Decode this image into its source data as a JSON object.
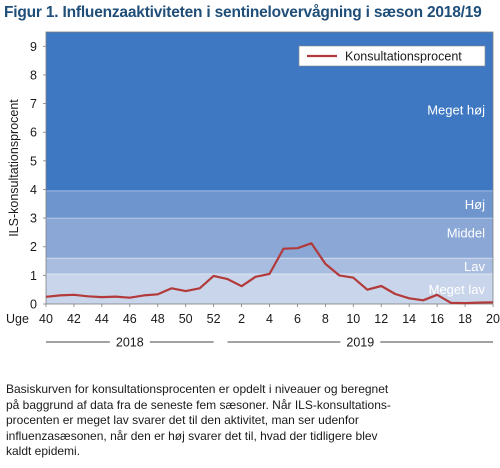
{
  "figure": {
    "title": "Figur 1. Influenzaaktiviteten i sentinelovervågning i sæson 2018/19",
    "caption_lines": [
      "Basiskurven  for konsultationsprocenten  er opdelt i niveauer  og beregnet",
      "på baggrund  af data fra de seneste  fem sæsoner.  Når ILS-konsultations-",
      "procenten  er meget lav svarer det til den  aktivitet, man ser udenfor",
      "influenzasæsonen,  når den er høj svarer det til, hvad der tidligere blev",
      "kaldt epidemi."
    ]
  },
  "chart_data": {
    "type": "line",
    "title": "",
    "xlabel": "Uge",
    "ylabel": "ILS-konsultationsprocent",
    "ylim": [
      0,
      9.5
    ],
    "yticks": [
      "0",
      "1",
      "2",
      "3",
      "4",
      "5",
      "6",
      "7",
      "8",
      "9"
    ],
    "x_tick_labels": [
      "40",
      "42",
      "44",
      "46",
      "48",
      "50",
      "52",
      "2",
      "4",
      "6",
      "8",
      "10",
      "12",
      "14",
      "16",
      "18",
      "20"
    ],
    "year_labels": [
      "2018",
      "2019"
    ],
    "legend": {
      "position": "top-right",
      "label": "Konsultationsprocent"
    },
    "bands": [
      {
        "label": "Meget lav",
        "from": 0,
        "to": 1.05,
        "color": "#c9d5ea"
      },
      {
        "label": "Lav",
        "from": 1.05,
        "to": 1.6,
        "color": "#a8bde0"
      },
      {
        "label": "Middel",
        "from": 1.6,
        "to": 3.0,
        "color": "#8aa7d6"
      },
      {
        "label": "Høj",
        "from": 3.0,
        "to": 3.95,
        "color": "#6f95cf"
      },
      {
        "label": "Meget høj",
        "from": 3.95,
        "to": 9.5,
        "color": "#3e78c2"
      }
    ],
    "series": [
      {
        "name": "Konsultationsprocent",
        "color": "#b33a3a",
        "x": [
          "40",
          "41",
          "42",
          "43",
          "44",
          "45",
          "46",
          "47",
          "48",
          "49",
          "50",
          "51",
          "52",
          "1",
          "2",
          "3",
          "4",
          "5",
          "6",
          "7",
          "8",
          "9",
          "10",
          "11",
          "12",
          "13",
          "14",
          "15",
          "16",
          "17",
          "18",
          "19",
          "20"
        ],
        "values": [
          0.25,
          0.3,
          0.32,
          0.27,
          0.24,
          0.26,
          0.22,
          0.3,
          0.34,
          0.55,
          0.45,
          0.55,
          0.98,
          0.87,
          0.62,
          0.95,
          1.05,
          1.93,
          1.95,
          2.12,
          1.4,
          1.0,
          0.92,
          0.5,
          0.63,
          0.35,
          0.2,
          0.13,
          0.32,
          0.04,
          0.03,
          0.05,
          0.06
        ]
      }
    ]
  }
}
